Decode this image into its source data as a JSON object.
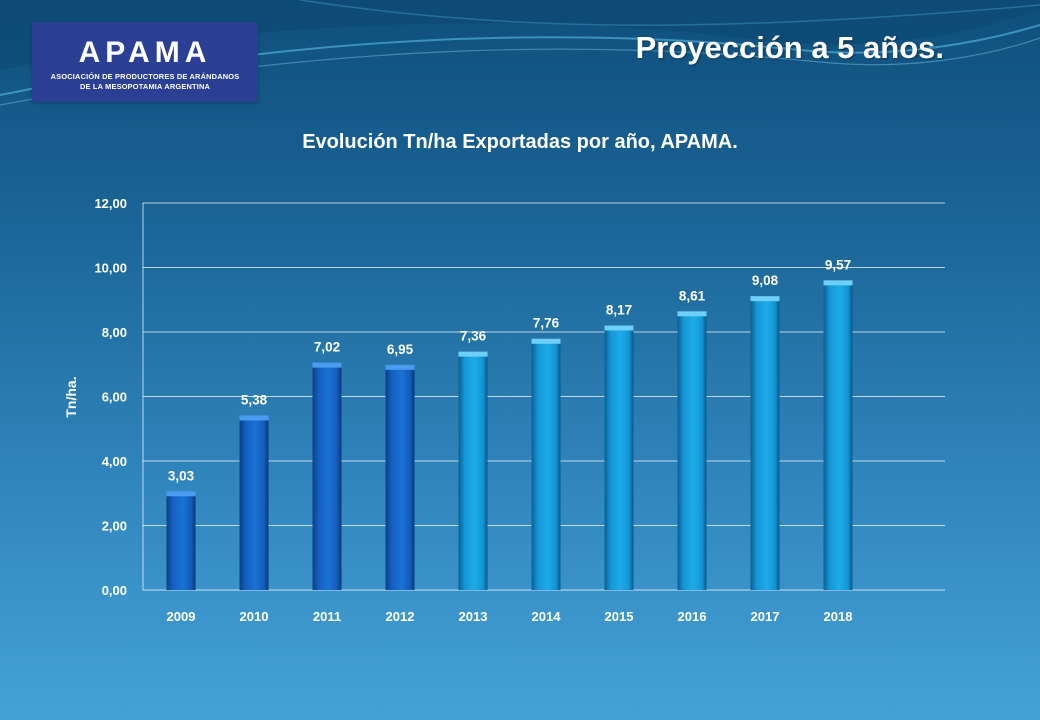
{
  "slide": {
    "title": "Proyección a 5 años."
  },
  "logo": {
    "name": "APAMA",
    "subtitle_line1": "ASOCIACIÓN DE PRODUCTORES DE ARÁNDANOS",
    "subtitle_line2": "DE LA MESOPOTAMIA ARGENTINA",
    "background": "#2b3f95"
  },
  "chart_data": {
    "type": "bar",
    "title": "Evolución Tn/ha Exportadas por año, APAMA.",
    "xlabel": "",
    "ylabel": "Tn/ha.",
    "categories": [
      "2009",
      "2010",
      "2011",
      "2012",
      "2013",
      "2014",
      "2015",
      "2016",
      "2017",
      "2018"
    ],
    "values": [
      3.03,
      5.38,
      7.02,
      6.95,
      7.36,
      7.76,
      8.17,
      8.61,
      9.08,
      9.57
    ],
    "data_labels": [
      "3,03",
      "5,38",
      "7,02",
      "6,95",
      "7,36",
      "7,76",
      "8,17",
      "8,61",
      "9,08",
      "9,57"
    ],
    "ylim": [
      0,
      12
    ],
    "yticks": [
      "0,00",
      "2,00",
      "4,00",
      "6,00",
      "8,00",
      "10,00",
      "12,00"
    ],
    "grid": true,
    "legend": "none",
    "colors": {
      "historical": "#1565c8",
      "projected": "#1aa0e0",
      "historical_years": [
        "2009",
        "2010",
        "2011",
        "2012"
      ]
    }
  }
}
